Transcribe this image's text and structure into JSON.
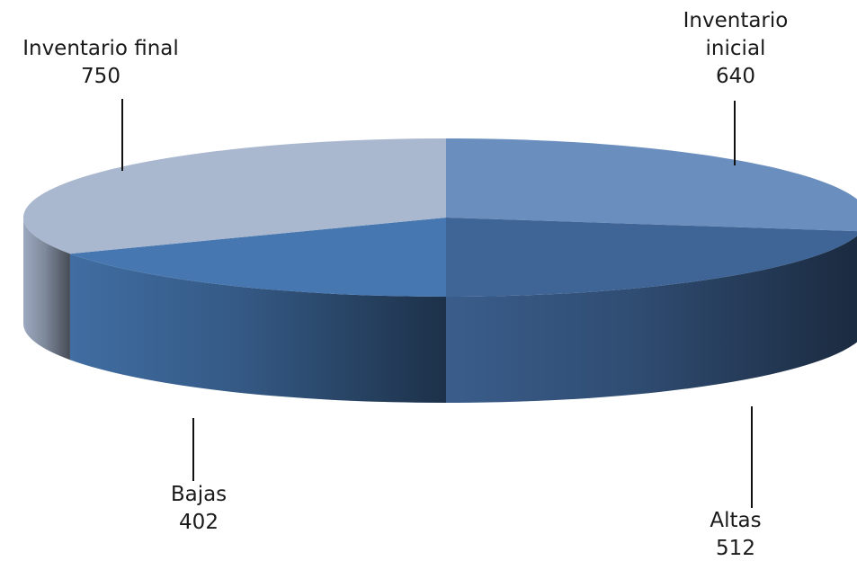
{
  "chart_data": {
    "type": "pie",
    "style": "3d-tilted",
    "slices": [
      {
        "name": "Inventario inicial",
        "label_lines": [
          "Inventario",
          "inicial"
        ],
        "value": 640,
        "color": "#6a8fbe"
      },
      {
        "name": "Altas",
        "label_lines": [
          "Altas"
        ],
        "value": 512,
        "color": "#3f6597"
      },
      {
        "name": "Bajas",
        "label_lines": [
          "Bajas"
        ],
        "value": 402,
        "color": "#4677b0"
      },
      {
        "name": "Inventario final",
        "label_lines": [
          "Inventario final"
        ],
        "value": 750,
        "color": "#a9b7cf"
      }
    ],
    "show_values": true,
    "legend": "none"
  }
}
